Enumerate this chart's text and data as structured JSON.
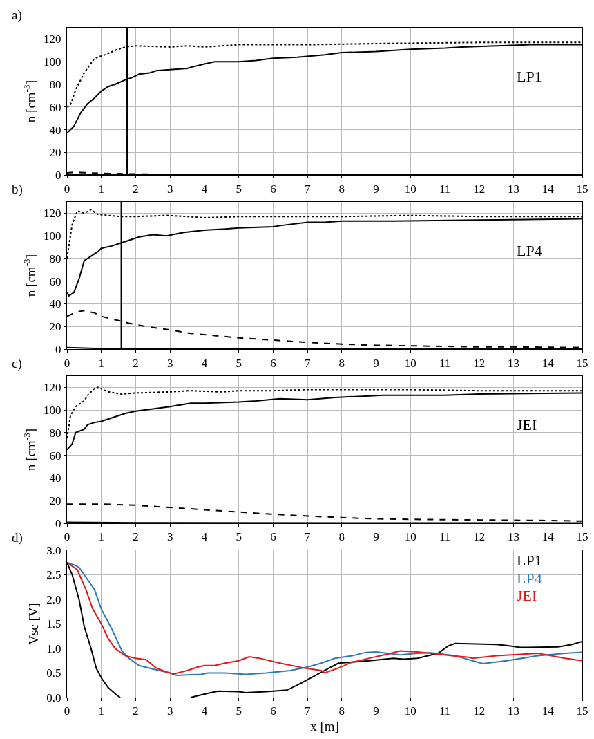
{
  "chart_data": [
    {
      "type": "line",
      "title": "a)",
      "ylabel": "n [cm$^{-3}$]",
      "xlim": [
        0,
        15
      ],
      "xticks": [
        0,
        1,
        2,
        3,
        4,
        5,
        6,
        7,
        8,
        9,
        10,
        11,
        12,
        13,
        14,
        15
      ],
      "ylim": [
        0,
        130
      ],
      "yticks": [
        0,
        20,
        40,
        60,
        80,
        100,
        120
      ],
      "grid": true,
      "marker": "none",
      "annotations": [
        "LP1"
      ],
      "ref_lines": [
        {
          "axis": "x",
          "value": 1.75,
          "color": "#000000"
        }
      ],
      "series": [
        {
          "color": "#000000",
          "line_style": "solid",
          "x": [
            0,
            0.2,
            0.4,
            0.6,
            0.8,
            1.0,
            1.2,
            1.4,
            1.7,
            1.9,
            2.1,
            2.4,
            2.6,
            3,
            3.5,
            3.6,
            4,
            4.3,
            5,
            5.5,
            6,
            6.7,
            7.5,
            8,
            9,
            10,
            11,
            11.5,
            12.5,
            13.5,
            15
          ],
          "values": [
            37,
            43,
            55,
            63,
            68,
            74,
            78,
            80,
            84,
            86,
            89,
            90,
            92,
            93,
            94,
            95,
            98,
            100,
            100,
            101,
            103,
            104,
            106,
            108,
            109,
            111,
            112,
            113,
            114,
            115,
            115
          ]
        },
        {
          "color": "#000000",
          "line_style": "dotted",
          "x": [
            0,
            0.1,
            0.25,
            0.5,
            0.8,
            1.1,
            1.4,
            1.7,
            2.0,
            3,
            3.5,
            4,
            5,
            7,
            9,
            12,
            15
          ],
          "values": [
            60,
            62,
            75,
            90,
            103,
            106,
            110,
            113,
            114,
            113,
            114,
            113,
            115,
            115,
            116,
            117,
            117
          ]
        },
        {
          "color": "#000000",
          "line_style": "dashed",
          "x": [
            0,
            0.2,
            1,
            2,
            2.5
          ],
          "values": [
            2,
            2.5,
            1.5,
            1,
            0.8
          ]
        },
        {
          "color": "#000000",
          "line_style": "solid",
          "x": [
            0,
            15
          ],
          "values": [
            0.5,
            0.5
          ]
        }
      ]
    },
    {
      "type": "line",
      "title": "b)",
      "ylabel": "n [cm$^{-3}$]",
      "xlim": [
        0,
        15
      ],
      "xticks": [
        0,
        1,
        2,
        3,
        4,
        5,
        6,
        7,
        8,
        9,
        10,
        11,
        12,
        13,
        14,
        15
      ],
      "ylim": [
        0,
        130
      ],
      "yticks": [
        0,
        20,
        40,
        60,
        80,
        100,
        120
      ],
      "grid": true,
      "marker": "none",
      "annotations": [
        "LP4"
      ],
      "ref_lines": [
        {
          "axis": "x",
          "value": 1.58,
          "color": "#000000"
        }
      ],
      "series": [
        {
          "color": "#000000",
          "line_style": "solid",
          "x": [
            0,
            0.05,
            0.2,
            0.35,
            0.5,
            0.7,
            0.9,
            1.0,
            1.3,
            1.6,
            1.8,
            2.1,
            2.5,
            2.9,
            3.4,
            4,
            4.6,
            5,
            6,
            6.2,
            7,
            7.5,
            8,
            9.5,
            12,
            15
          ],
          "values": [
            50,
            47,
            50,
            62,
            78,
            82,
            86,
            89,
            91,
            94,
            96,
            99,
            101,
            100,
            103,
            105,
            106,
            107,
            108,
            109,
            112,
            112,
            113,
            113,
            114,
            115
          ]
        },
        {
          "color": "#000000",
          "line_style": "dotted",
          "x": [
            0,
            0.1,
            0.15,
            0.3,
            0.5,
            0.7,
            0.9,
            1.2,
            1.6,
            2,
            2.9,
            3.5,
            4,
            5,
            7,
            8,
            10,
            12,
            15
          ],
          "values": [
            80,
            100,
            110,
            122,
            120,
            123,
            119,
            118,
            117,
            117,
            118,
            117,
            116,
            117,
            117,
            117,
            118,
            117,
            117
          ]
        },
        {
          "color": "#000000",
          "line_style": "dashed",
          "x": [
            0,
            0.3,
            0.5,
            0.8,
            1.0,
            1.4,
            1.8,
            2.3,
            3,
            3.6,
            4.3,
            5,
            6,
            7,
            8,
            9,
            10,
            11,
            12,
            13,
            15
          ],
          "values": [
            29,
            33,
            34,
            32,
            29,
            26,
            23,
            20,
            17,
            14,
            12,
            10,
            8,
            6,
            4.5,
            3.5,
            3,
            2.5,
            2,
            2,
            1.5
          ]
        },
        {
          "color": "#000000",
          "line_style": "solid",
          "x": [
            0,
            1,
            2,
            15
          ],
          "values": [
            1.5,
            0.5,
            0.2,
            0.2
          ]
        }
      ]
    },
    {
      "type": "line",
      "title": "c)",
      "ylabel": "n [cm$^{-3}$]",
      "xlim": [
        0,
        15
      ],
      "xticks": [
        0,
        1,
        2,
        3,
        4,
        5,
        6,
        7,
        8,
        9,
        10,
        11,
        12,
        13,
        14,
        15
      ],
      "ylim": [
        0,
        130
      ],
      "yticks": [
        0,
        20,
        40,
        60,
        80,
        100,
        120
      ],
      "grid": true,
      "marker": "none",
      "annotations": [
        "JEI"
      ],
      "series": [
        {
          "color": "#000000",
          "line_style": "solid",
          "x": [
            0,
            0.15,
            0.25,
            0.5,
            0.6,
            0.8,
            1.0,
            1.3,
            1.7,
            2.0,
            2.5,
            3,
            3.6,
            4,
            5,
            5.5,
            6.2,
            7,
            7.8,
            8.5,
            9.2,
            10,
            11,
            12,
            15
          ],
          "values": [
            65,
            70,
            80,
            83,
            87,
            89,
            90,
            93,
            97,
            99,
            101,
            103,
            106,
            106,
            107,
            108,
            110,
            109,
            111,
            112,
            113,
            113,
            113,
            114,
            115
          ]
        },
        {
          "color": "#000000",
          "line_style": "dotted",
          "x": [
            0,
            0.1,
            0.25,
            0.5,
            0.6,
            0.8,
            0.9,
            1.2,
            1.6,
            2,
            3,
            3.6,
            4.5,
            5,
            6,
            7,
            9,
            10,
            12,
            15
          ],
          "values": [
            75,
            95,
            103,
            108,
            113,
            119,
            120,
            116,
            114,
            115,
            116,
            117,
            116,
            117,
            117,
            118,
            118,
            118,
            117,
            117
          ]
        },
        {
          "color": "#000000",
          "line_style": "dashed",
          "x": [
            0,
            1,
            2,
            3,
            4,
            5,
            6,
            7,
            8,
            9,
            10,
            12,
            14,
            15
          ],
          "values": [
            17,
            17,
            16,
            14,
            12,
            10,
            8,
            6.5,
            5,
            4,
            3.5,
            3,
            2.5,
            2
          ]
        },
        {
          "color": "#000000",
          "line_style": "solid",
          "x": [
            0,
            2,
            15
          ],
          "values": [
            1,
            0.5,
            0.3
          ]
        }
      ]
    },
    {
      "type": "line",
      "title": "d)",
      "xlabel": "x [m]",
      "ylabel": "Vsc [V]",
      "xlim": [
        0,
        15
      ],
      "xticks": [
        0,
        1,
        2,
        3,
        4,
        5,
        6,
        7,
        8,
        9,
        10,
        11,
        12,
        13,
        14,
        15
      ],
      "ylim": [
        0,
        3
      ],
      "yticks": [
        {
          "value": 0,
          "label": "0.0"
        },
        {
          "value": 0.5,
          "label": "0.5"
        },
        {
          "value": 1,
          "label": "1.0"
        },
        {
          "value": 1.5,
          "label": "1.5"
        },
        {
          "value": 2,
          "label": "2.0"
        },
        {
          "value": 2.5,
          "label": "2.5"
        },
        {
          "value": 3,
          "label": "3.0"
        }
      ],
      "grid": true,
      "marker": "none",
      "legend": "top right",
      "series": [
        {
          "name": "LP1",
          "color": "#000000",
          "line_style": "solid",
          "x": [
            0,
            0.15,
            0.35,
            0.5,
            0.7,
            0.85,
            1.0,
            1.2,
            1.45,
            1.55,
            2.5,
            3.6,
            4.0,
            4.4,
            5.0,
            5.2,
            5.8,
            6.4,
            6.7,
            7.1,
            7.5,
            7.9,
            8.3,
            8.8,
            9.5,
            9.8,
            10.2,
            10.8,
            11.1,
            11.3,
            12.5,
            12.8,
            13.2,
            14.3,
            14.7,
            15
          ],
          "values": [
            2.75,
            2.5,
            2.0,
            1.45,
            1.0,
            0.6,
            0.4,
            0.2,
            0.05,
            0.0,
            null,
            0.0,
            0.07,
            0.13,
            0.12,
            0.1,
            0.12,
            0.15,
            0.25,
            0.4,
            0.55,
            0.7,
            0.72,
            0.75,
            0.8,
            0.78,
            0.8,
            0.9,
            1.05,
            1.1,
            1.08,
            1.06,
            1.02,
            1.03,
            1.08,
            1.14
          ]
        },
        {
          "name": "LP4",
          "color": "#2c7bb6",
          "line_style": "solid",
          "x": [
            0,
            0.2,
            0.35,
            0.6,
            0.8,
            1.0,
            1.3,
            1.6,
            1.8,
            2.1,
            2.5,
            3.0,
            3.2,
            3.5,
            3.9,
            4.1,
            4.6,
            5.2,
            5.8,
            6.5,
            7.0,
            7.4,
            7.8,
            8.3,
            8.7,
            9.0,
            9.7,
            10.2,
            10.6,
            11.3,
            12.1,
            12.8,
            13.7,
            14.5,
            15
          ],
          "values": [
            2.75,
            2.7,
            2.65,
            2.4,
            2.2,
            1.8,
            1.4,
            0.95,
            0.8,
            0.65,
            0.58,
            0.5,
            0.45,
            0.46,
            0.47,
            0.5,
            0.5,
            0.47,
            0.5,
            0.55,
            0.62,
            0.7,
            0.8,
            0.85,
            0.92,
            0.93,
            0.87,
            0.9,
            0.91,
            0.85,
            0.69,
            0.75,
            0.85,
            0.9,
            0.92
          ]
        },
        {
          "name": "JEI",
          "color": "#e31a1c",
          "line_style": "solid",
          "x": [
            0,
            0.3,
            0.55,
            0.75,
            1.0,
            1.2,
            1.4,
            1.7,
            2.0,
            2.3,
            2.6,
            2.9,
            3.1,
            3.5,
            3.8,
            4.0,
            4.3,
            4.6,
            5.0,
            5.3,
            5.6,
            6.2,
            6.9,
            7.4,
            7.5,
            7.9,
            8.3,
            8.8,
            9.3,
            9.7,
            10.2,
            10.6,
            11.2,
            11.7,
            11.8,
            12.5,
            13.2,
            13.7,
            14.1,
            14.5,
            15
          ],
          "values": [
            2.75,
            2.6,
            2.2,
            1.8,
            1.5,
            1.2,
            1.0,
            0.85,
            0.8,
            0.77,
            0.6,
            0.52,
            0.48,
            0.55,
            0.62,
            0.65,
            0.65,
            0.7,
            0.75,
            0.83,
            0.8,
            0.7,
            0.6,
            0.55,
            0.5,
            0.6,
            0.72,
            0.8,
            0.88,
            0.95,
            0.93,
            0.9,
            0.85,
            0.82,
            0.8,
            0.85,
            0.88,
            0.9,
            0.85,
            0.8,
            0.75
          ]
        }
      ]
    }
  ]
}
